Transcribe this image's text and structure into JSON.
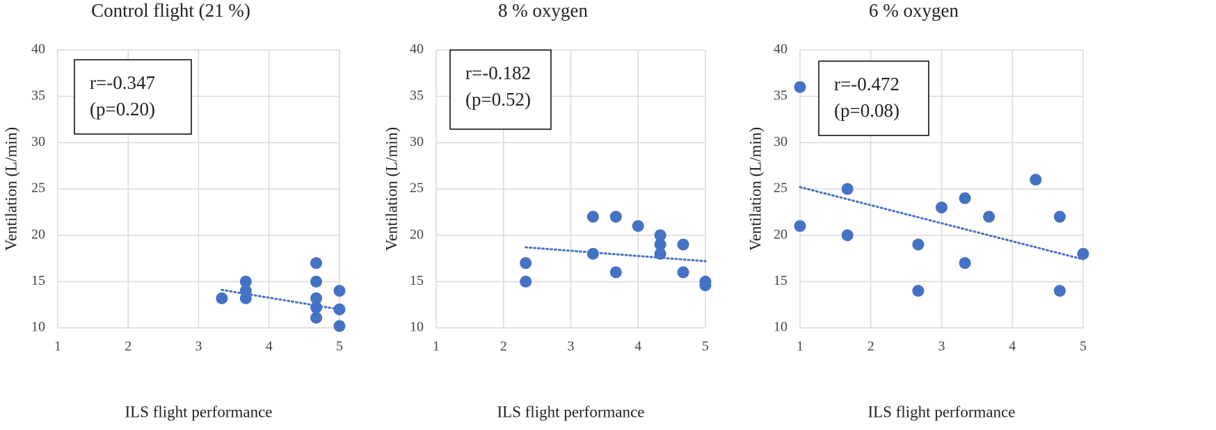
{
  "chart_data": [
    {
      "type": "scatter",
      "title": "Control flight (21 %)",
      "x_label": "ILS flight performance",
      "y_label": "Ventilation (L/min)",
      "annotation": [
        "r=-0.347",
        "(p=0.20)"
      ],
      "color": "#4472c4",
      "grid": true,
      "xlim": [
        1,
        5
      ],
      "xticks": [
        1,
        2,
        3,
        4,
        5
      ],
      "ylim": [
        10,
        40
      ],
      "yticks": [
        10,
        15,
        20,
        25,
        30,
        35,
        40
      ],
      "x": [
        3.33,
        3.67,
        3.67,
        3.67,
        4.67,
        4.67,
        4.67,
        4.67,
        4.67,
        5,
        5,
        5
      ],
      "values": [
        13.2,
        15,
        14,
        13.2,
        17,
        15,
        13.2,
        12.2,
        11.1,
        14,
        12,
        10.2
      ],
      "trendline": {
        "x": [
          3.33,
          5
        ],
        "y": [
          14.1,
          12
        ]
      }
    },
    {
      "type": "scatter",
      "title": "8 % oxygen",
      "x_label": "ILS flight performance",
      "y_label": "Ventilation (L/min)",
      "annotation": [
        "r=-0.182",
        "(p=0.52)"
      ],
      "color": "#4472c4",
      "grid": true,
      "xlim": [
        1,
        5
      ],
      "xticks": [
        1,
        2,
        3,
        4,
        5
      ],
      "ylim": [
        10,
        40
      ],
      "yticks": [
        10,
        15,
        20,
        25,
        30,
        35,
        40
      ],
      "x": [
        2.33,
        2.33,
        3.33,
        3.33,
        3.67,
        3.67,
        4,
        4.33,
        4.33,
        4.33,
        4.67,
        4.67,
        5,
        5
      ],
      "values": [
        17,
        15,
        22,
        18,
        22,
        16,
        21,
        20,
        19,
        18,
        19,
        16,
        15,
        14.6
      ],
      "trendline": {
        "x": [
          2.33,
          5
        ],
        "y": [
          18.7,
          17.2
        ]
      }
    },
    {
      "type": "scatter",
      "title": "6 % oxygen",
      "x_label": "ILS flight performance",
      "y_label": "Ventilation (L/min)",
      "annotation": [
        "r=-0.472",
        "(p=0.08)"
      ],
      "color": "#4472c4",
      "grid": true,
      "xlim": [
        1,
        5
      ],
      "xticks": [
        1,
        2,
        3,
        4,
        5
      ],
      "ylim": [
        10,
        40
      ],
      "yticks": [
        10,
        15,
        20,
        25,
        30,
        35,
        40
      ],
      "x": [
        1,
        1,
        1.67,
        1.67,
        2.67,
        2.67,
        3,
        3.33,
        3.33,
        3.67,
        4.33,
        4.67,
        4.67,
        5
      ],
      "values": [
        36,
        21,
        25,
        20,
        19,
        14,
        23,
        24,
        17,
        22,
        26,
        22,
        14,
        18
      ],
      "trendline": {
        "x": [
          1,
          5
        ],
        "y": [
          25.2,
          17.4
        ]
      }
    }
  ]
}
